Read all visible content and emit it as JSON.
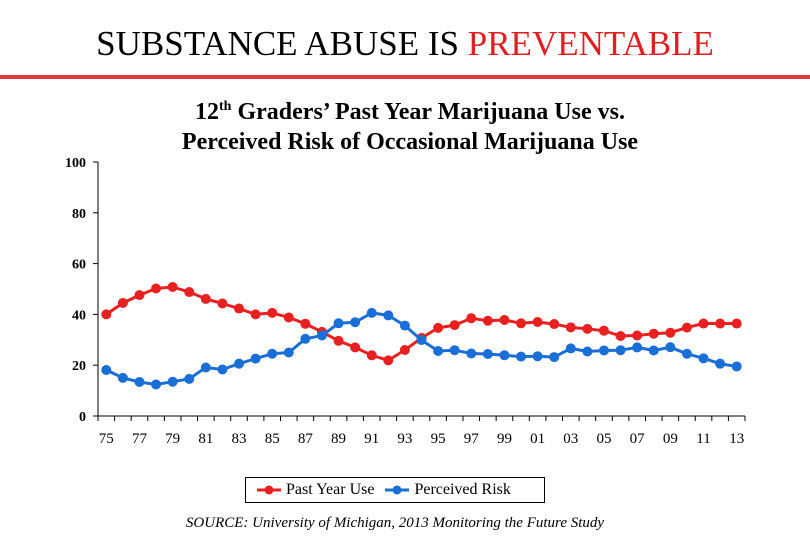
{
  "slide": {
    "title_main": "SUBSTANCE ABUSE IS ",
    "title_accent": "PREVENTABLE",
    "source": "SOURCE: University of Michigan, 2013 Monitoring the Future Study"
  },
  "chart_data": {
    "type": "line",
    "title_line1_num": "12",
    "title_line1_sup": "th",
    "title_line1_rest": " Graders’ Past Year Marijuana Use vs.",
    "title_line2": "Perceived Risk of Occasional Marijuana Use",
    "x": [
      "75",
      "76",
      "77",
      "78",
      "79",
      "80",
      "81",
      "82",
      "83",
      "84",
      "85",
      "86",
      "87",
      "88",
      "89",
      "90",
      "91",
      "92",
      "93",
      "94",
      "95",
      "96",
      "97",
      "98",
      "99",
      "00",
      "01",
      "02",
      "03",
      "04",
      "05",
      "06",
      "07",
      "08",
      "09",
      "10",
      "11",
      "12",
      "13"
    ],
    "x_tick_labels": [
      "75",
      "77",
      "79",
      "81",
      "83",
      "85",
      "87",
      "89",
      "91",
      "93",
      "95",
      "97",
      "99",
      "01",
      "03",
      "05",
      "07",
      "09",
      "11",
      "13"
    ],
    "ylim": [
      0,
      100
    ],
    "y_ticks": [
      0,
      20,
      40,
      60,
      80,
      100
    ],
    "series": [
      {
        "name": "Past Year Use",
        "color": "#e82020",
        "values": [
          40,
          44.5,
          47.6,
          50.2,
          50.8,
          48.8,
          46.1,
          44.3,
          42.3,
          40.0,
          40.6,
          38.8,
          36.3,
          33.1,
          29.6,
          27.0,
          23.9,
          21.9,
          26.0,
          30.7,
          34.7,
          35.8,
          38.5,
          37.5,
          37.8,
          36.5,
          37.0,
          36.2,
          34.9,
          34.3,
          33.6,
          31.5,
          31.7,
          32.4,
          32.8,
          34.8,
          36.4,
          36.4,
          36.4
        ]
      },
      {
        "name": "Perceived Risk",
        "color": "#1a6fd6",
        "values": [
          18.1,
          15.0,
          13.4,
          12.4,
          13.5,
          14.6,
          19.1,
          18.3,
          20.6,
          22.6,
          24.5,
          25.0,
          30.4,
          31.7,
          36.5,
          36.9,
          40.6,
          39.6,
          35.6,
          29.9,
          25.6,
          25.9,
          24.6,
          24.4,
          23.9,
          23.4,
          23.5,
          23.2,
          26.6,
          25.4,
          25.8,
          25.9,
          27.0,
          25.8,
          27.1,
          24.5,
          22.7,
          20.6,
          19.5
        ]
      }
    ]
  }
}
